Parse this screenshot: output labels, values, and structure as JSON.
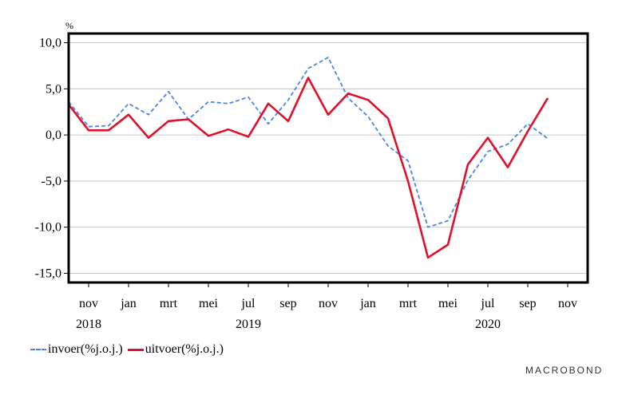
{
  "chart_data": {
    "type": "line",
    "unit_label": "%",
    "ylim": [
      -16.0,
      11.0
    ],
    "yticks": [
      10,
      5,
      0,
      -5,
      -10,
      -15
    ],
    "ytick_labels": [
      "10,0",
      "5,0",
      "0,0",
      "-5,0",
      "-10,0",
      "-15,0"
    ],
    "x": [
      "2018-10",
      "2018-11",
      "2018-12",
      "2019-01",
      "2019-02",
      "2019-03",
      "2019-04",
      "2019-05",
      "2019-06",
      "2019-07",
      "2019-08",
      "2019-09",
      "2019-10",
      "2019-11",
      "2019-12",
      "2020-01",
      "2020-02",
      "2020-03",
      "2020-04",
      "2020-05",
      "2020-06",
      "2020-07",
      "2020-08",
      "2020-09",
      "2020-10",
      "2020-11"
    ],
    "xlim": [
      "2018-10",
      "2020-12"
    ],
    "month_ticks": [
      {
        "x": "2018-11",
        "label": "nov"
      },
      {
        "x": "2019-01",
        "label": "jan"
      },
      {
        "x": "2019-03",
        "label": "mrt"
      },
      {
        "x": "2019-05",
        "label": "mei"
      },
      {
        "x": "2019-07",
        "label": "jul"
      },
      {
        "x": "2019-09",
        "label": "sep"
      },
      {
        "x": "2019-11",
        "label": "nov"
      },
      {
        "x": "2020-01",
        "label": "jan"
      },
      {
        "x": "2020-03",
        "label": "mrt"
      },
      {
        "x": "2020-05",
        "label": "mei"
      },
      {
        "x": "2020-07",
        "label": "jul"
      },
      {
        "x": "2020-09",
        "label": "sep"
      },
      {
        "x": "2020-11",
        "label": "nov"
      }
    ],
    "year_labels": [
      {
        "x": "2018-11",
        "label": "2018"
      },
      {
        "x": "2019-07",
        "label": "2019"
      },
      {
        "x": "2020-07",
        "label": "2020"
      }
    ],
    "series": [
      {
        "name": "invoer(%j.o.j.)",
        "color": "#4a86e8",
        "style": "dashed",
        "values": [
          3.6,
          0.9,
          1.0,
          3.4,
          2.2,
          4.7,
          1.7,
          3.6,
          3.4,
          4.1,
          1.2,
          3.8,
          7.2,
          8.4,
          4.0,
          2.0,
          -1.2,
          -2.8,
          -10.0,
          -9.3,
          -4.9,
          -1.8,
          -1.0,
          1.2,
          -0.4,
          null
        ]
      },
      {
        "name": "uitvoer(%j.o.j.)",
        "color": "#e0102a",
        "style": "solid",
        "values": [
          3.3,
          0.5,
          0.5,
          2.2,
          -0.3,
          1.5,
          1.7,
          -0.1,
          0.6,
          -0.2,
          3.4,
          1.5,
          6.2,
          2.2,
          4.5,
          3.8,
          1.8,
          -5.0,
          -13.3,
          -11.9,
          -3.2,
          -0.3,
          -3.5,
          0.4,
          4.0,
          null
        ]
      }
    ],
    "grid": "horizontal",
    "legend_position": "bottom-left"
  },
  "brand": "MACROBOND"
}
